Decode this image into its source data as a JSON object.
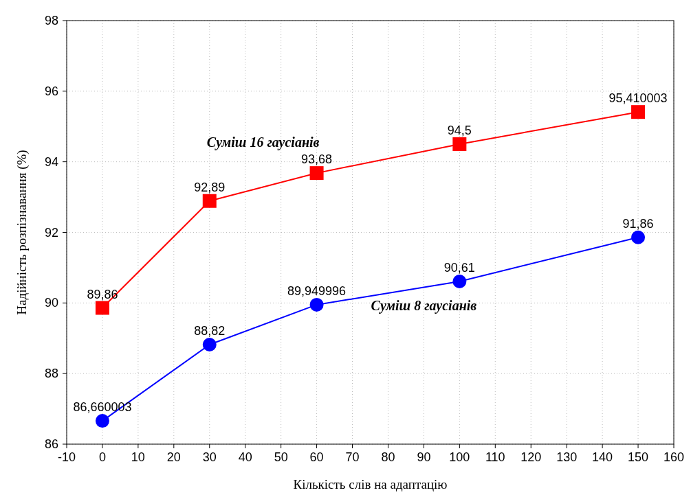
{
  "chart_data": {
    "type": "line",
    "xlabel": "Кількість слів на адаптацію",
    "ylabel": "Надійність розпізнавання (%)",
    "x": [
      0,
      30,
      60,
      100,
      150
    ],
    "xlim": [
      -10,
      160
    ],
    "xticks": [
      -10,
      0,
      10,
      20,
      30,
      40,
      50,
      60,
      70,
      80,
      90,
      100,
      110,
      120,
      130,
      140,
      150,
      160
    ],
    "ylim": [
      86,
      98
    ],
    "yticks": [
      86,
      88,
      90,
      92,
      94,
      96,
      98
    ],
    "grid": true,
    "line_style": "solid",
    "series": [
      {
        "name": "Суміш 16 гаусіанів",
        "color": "#ff0000",
        "marker": "square",
        "values": [
          89.86,
          92.89,
          93.68,
          94.5,
          95.410003
        ],
        "value_labels": [
          "89,86",
          "92,89",
          "93,68",
          "94,5",
          "95,410003"
        ]
      },
      {
        "name": "Суміш 8 гаусіанів",
        "color": "#0000ff",
        "marker": "circle",
        "values": [
          86.660003,
          88.82,
          89.949996,
          90.61,
          91.86
        ],
        "value_labels": [
          "86,660003",
          "88,82",
          "89,949996",
          "90,61",
          "91,86"
        ]
      }
    ]
  }
}
